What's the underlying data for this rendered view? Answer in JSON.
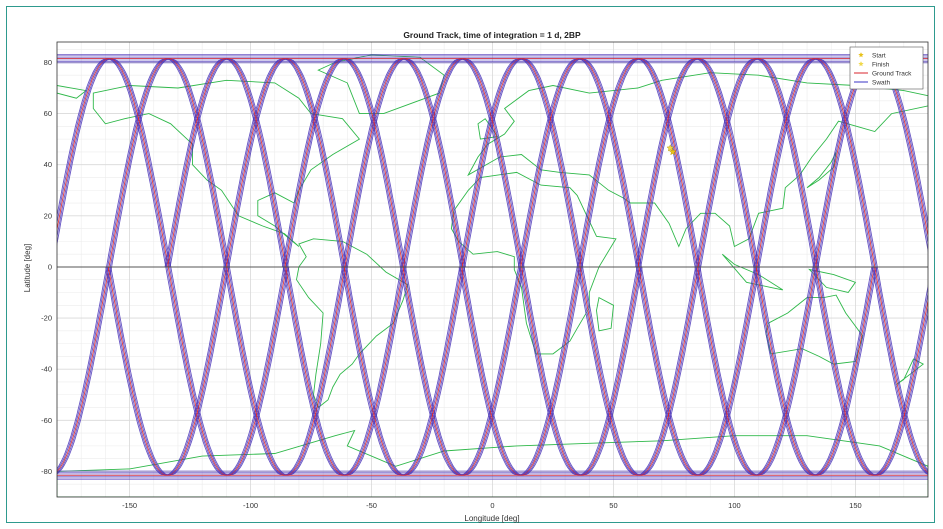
{
  "chart_data": {
    "type": "line",
    "title": "Ground Track, time of integration = 1 d, 2BP",
    "xlabel": "Longitude [deg]",
    "ylabel": "Latitude [deg]",
    "xlim": [
      -180,
      180
    ],
    "ylim": [
      -90,
      88
    ],
    "xticks": [
      -150,
      -100,
      -50,
      0,
      50,
      100,
      150
    ],
    "yticks": [
      -80,
      -60,
      -40,
      -20,
      0,
      20,
      40,
      60,
      80
    ],
    "grid": true,
    "minor_grid": true,
    "legend_position": "top-right",
    "legend": [
      {
        "label": "Start",
        "marker": "star",
        "color": "#e8c21a"
      },
      {
        "label": "Finish",
        "marker": "star",
        "color": "#f0d84a"
      },
      {
        "label": "Ground Track",
        "marker": "line",
        "color": "#d9262c"
      },
      {
        "label": "Swath",
        "marker": "line",
        "color": "#3a33c4"
      }
    ],
    "ground_track": {
      "max_latitude": 81.5,
      "equator_crossings": [
        -158.5,
        -134,
        -110,
        -85.5,
        -61,
        -37,
        -12.5,
        12,
        36,
        60.5,
        85,
        109,
        133.5,
        158,
        182.5
      ],
      "start_point": {
        "lon": 74.5,
        "lat": 45
      },
      "finish_point": {
        "lon": 73.5,
        "lat": 46.5
      }
    },
    "colors": {
      "track": "#d9262c",
      "swath": "#4b35b8",
      "coastline": "#2fb84a",
      "grid": "#d9d9d9",
      "frame": "#2e9a8e"
    }
  }
}
